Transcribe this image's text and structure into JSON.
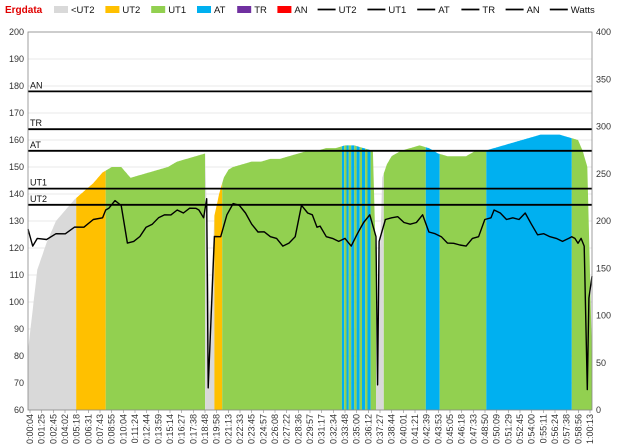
{
  "chart_data": {
    "type": "area",
    "title": "Ergdata",
    "xlabel": "",
    "ylabel": "",
    "y2label": "",
    "ylim": [
      60,
      200
    ],
    "y2lim": [
      0,
      400
    ],
    "yticks": [
      60,
      70,
      80,
      90,
      100,
      110,
      120,
      130,
      140,
      150,
      160,
      170,
      180,
      190,
      200
    ],
    "y2ticks": [
      0,
      50,
      100,
      150,
      200,
      250,
      300,
      350,
      400
    ],
    "grid": true,
    "legend": {
      "position": "top",
      "entries": [
        {
          "label": "<UT2",
          "kind": "area",
          "color": "#d9d9d9"
        },
        {
          "label": "UT2",
          "kind": "area",
          "color": "#ffc000"
        },
        {
          "label": "UT1",
          "kind": "area",
          "color": "#92d050"
        },
        {
          "label": "AT",
          "kind": "area",
          "color": "#00b0f0"
        },
        {
          "label": "TR",
          "kind": "area",
          "color": "#7030a0"
        },
        {
          "label": "AN",
          "kind": "area",
          "color": "#ff0000"
        },
        {
          "label": "UT2",
          "kind": "line",
          "color": "#000000"
        },
        {
          "label": "UT1",
          "kind": "line",
          "color": "#000000"
        },
        {
          "label": "AT",
          "kind": "line",
          "color": "#000000"
        },
        {
          "label": "TR",
          "kind": "line",
          "color": "#000000"
        },
        {
          "label": "AN",
          "kind": "line",
          "color": "#000000"
        },
        {
          "label": "Watts",
          "kind": "line",
          "color": "#000000"
        }
      ]
    },
    "thresholds": [
      {
        "name": "AN",
        "value": 178
      },
      {
        "name": "TR",
        "value": 164
      },
      {
        "name": "AT",
        "value": 156
      },
      {
        "name": "UT1",
        "value": 142
      },
      {
        "name": "UT2",
        "value": 136
      }
    ],
    "x_total_seconds": 3630,
    "x_tick_labels": [
      "0:00:04",
      "0:01:25",
      "0:02:45",
      "0:04:02",
      "0:05:18",
      "0:06:31",
      "0:07:43",
      "0:08:55",
      "0:10:04",
      "0:11:24",
      "0:12:44",
      "0:13:59",
      "0:15:14",
      "0:16:27",
      "0:17:38",
      "0:18:48",
      "0:19:58",
      "0:21:13",
      "0:22:33",
      "0:23:45",
      "0:24:57",
      "0:26:08",
      "0:27:22",
      "0:28:36",
      "0:29:57",
      "0:31:17",
      "0:32:34",
      "0:33:48",
      "0:35:00",
      "0:36:12",
      "0:37:27",
      "0:38:44",
      "0:40:01",
      "0:41:21",
      "0:42:39",
      "0:43:53",
      "0:45:05",
      "0:46:18",
      "0:47:33",
      "0:48:50",
      "0:50:09",
      "0:51:29",
      "0:52:45",
      "0:54:00",
      "0:55:11",
      "0:56:24",
      "0:57:38",
      "0:58:56",
      "1:00:13"
    ],
    "heart_rate_series": {
      "name": "Heart rate (bpm)",
      "t": [
        0,
        60,
        120,
        180,
        240,
        300,
        360,
        420,
        480,
        540,
        600,
        660,
        720,
        780,
        840,
        900,
        960,
        1020,
        1080,
        1140,
        1170,
        1200,
        1230,
        1260,
        1290,
        1320,
        1380,
        1440,
        1500,
        1560,
        1620,
        1680,
        1740,
        1800,
        1860,
        1920,
        1980,
        2040,
        2100,
        2160,
        2220,
        2250,
        2280,
        2310,
        2340,
        2370,
        2400,
        2460,
        2520,
        2580,
        2640,
        2700,
        2760,
        2820,
        2880,
        2940,
        3000,
        3060,
        3120,
        3180,
        3240,
        3300,
        3360,
        3420,
        3480,
        3540,
        3570,
        3600,
        3630
      ],
      "bpm": [
        82,
        112,
        122,
        130,
        134,
        138,
        141,
        144,
        148,
        150,
        150,
        146,
        147,
        148,
        149,
        150,
        152,
        153,
        154,
        155,
        95,
        132,
        140,
        146,
        149,
        150,
        151,
        152,
        152,
        153,
        153,
        154,
        155,
        156,
        156,
        157,
        157,
        158,
        158,
        157,
        156,
        90,
        146,
        151,
        154,
        155,
        156,
        157,
        158,
        157,
        155,
        154,
        154,
        154,
        156,
        156,
        157,
        158,
        159,
        160,
        161,
        162,
        162,
        162,
        161,
        160,
        156,
        150,
        80
      ]
    },
    "zone_bands": [
      {
        "zone": "<UT2",
        "start": 0,
        "end": 310
      },
      {
        "zone": "UT2",
        "start": 310,
        "end": 500
      },
      {
        "zone": "UT1",
        "start": 500,
        "end": 1140
      },
      {
        "zone": "<UT2",
        "start": 1140,
        "end": 1200
      },
      {
        "zone": "UT2",
        "start": 1200,
        "end": 1250
      },
      {
        "zone": "UT1",
        "start": 1250,
        "end": 2020
      },
      {
        "zone": "AT",
        "start": 2020,
        "end": 2035
      },
      {
        "zone": "UT1",
        "start": 2035,
        "end": 2050
      },
      {
        "zone": "AT",
        "start": 2050,
        "end": 2065
      },
      {
        "zone": "UT1",
        "start": 2065,
        "end": 2080
      },
      {
        "zone": "AT",
        "start": 2080,
        "end": 2100
      },
      {
        "zone": "UT1",
        "start": 2100,
        "end": 2115
      },
      {
        "zone": "AT",
        "start": 2115,
        "end": 2135
      },
      {
        "zone": "UT1",
        "start": 2135,
        "end": 2150
      },
      {
        "zone": "AT",
        "start": 2150,
        "end": 2170
      },
      {
        "zone": "UT1",
        "start": 2170,
        "end": 2185
      },
      {
        "zone": "AT",
        "start": 2185,
        "end": 2205
      },
      {
        "zone": "UT1",
        "start": 2205,
        "end": 2240
      },
      {
        "zone": "<UT2",
        "start": 2240,
        "end": 2290
      },
      {
        "zone": "UT1",
        "start": 2290,
        "end": 2560
      },
      {
        "zone": "AT",
        "start": 2560,
        "end": 2650
      },
      {
        "zone": "UT1",
        "start": 2650,
        "end": 2950
      },
      {
        "zone": "AT",
        "start": 2950,
        "end": 3500
      },
      {
        "zone": "UT1",
        "start": 3500,
        "end": 3630
      }
    ],
    "watts_series": {
      "name": "Watts",
      "t": [
        0,
        30,
        60,
        120,
        180,
        240,
        300,
        360,
        420,
        480,
        500,
        520,
        560,
        600,
        640,
        680,
        720,
        760,
        800,
        840,
        880,
        920,
        960,
        1000,
        1040,
        1080,
        1100,
        1130,
        1150,
        1160,
        1200,
        1240,
        1280,
        1320,
        1360,
        1400,
        1440,
        1480,
        1520,
        1560,
        1600,
        1640,
        1680,
        1720,
        1760,
        1800,
        1830,
        1860,
        1880,
        1920,
        1960,
        2000,
        2040,
        2080,
        2120,
        2160,
        2200,
        2240,
        2250,
        2260,
        2300,
        2340,
        2380,
        2420,
        2460,
        2500,
        2540,
        2580,
        2620,
        2660,
        2700,
        2740,
        2780,
        2820,
        2860,
        2900,
        2940,
        2980,
        3000,
        3040,
        3080,
        3120,
        3160,
        3200,
        3240,
        3280,
        3320,
        3360,
        3400,
        3440,
        3480,
        3500,
        3520,
        3540,
        3560,
        3580,
        3600,
        3610,
        3630
      ],
      "values": [
        190,
        175,
        180,
        182,
        185,
        188,
        192,
        195,
        200,
        205,
        210,
        215,
        220,
        218,
        175,
        180,
        182,
        195,
        195,
        205,
        205,
        208,
        210,
        210,
        212,
        215,
        210,
        205,
        222,
        25,
        182,
        185,
        205,
        220,
        215,
        210,
        195,
        190,
        187,
        185,
        180,
        175,
        175,
        185,
        215,
        210,
        205,
        195,
        193,
        185,
        180,
        180,
        180,
        175,
        185,
        200,
        205,
        185,
        25,
        180,
        200,
        205,
        203,
        200,
        195,
        200,
        205,
        190,
        185,
        185,
        175,
        178,
        173,
        175,
        180,
        185,
        200,
        205,
        210,
        210,
        200,
        205,
        200,
        210,
        195,
        187,
        185,
        185,
        180,
        180,
        180,
        185,
        180,
        178,
        180,
        175,
        20,
        120,
        140
      ]
    }
  }
}
